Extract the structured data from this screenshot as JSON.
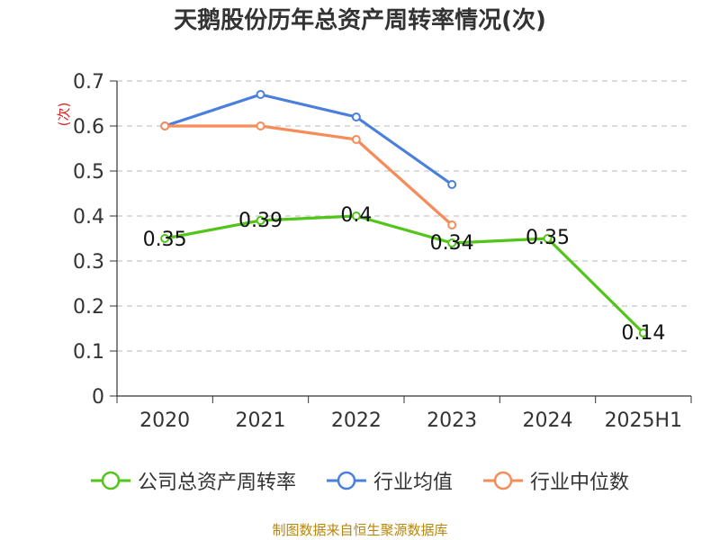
{
  "title": "天鹅股份历年总资产周转率情况(次)",
  "source": "制图数据来自恒生聚源数据库",
  "chart_data": {
    "type": "line",
    "ylabel": "(次)",
    "categories": [
      "2020",
      "2021",
      "2022",
      "2023",
      "2024",
      "2025H1"
    ],
    "ylim": [
      0,
      0.7
    ],
    "yticks": [
      "0",
      "0.1",
      "0.2",
      "0.3",
      "0.4",
      "0.5",
      "0.6",
      "0.7"
    ],
    "grid": true,
    "legend_position": "bottom",
    "series": [
      {
        "name": "公司总资产周转率",
        "color": "#52c41a",
        "values": [
          0.35,
          0.39,
          0.4,
          0.34,
          0.35,
          0.14
        ],
        "labels": [
          "0.35",
          "0.39",
          "0.4",
          "0.34",
          "0.35",
          "0.14"
        ]
      },
      {
        "name": "行业均值",
        "color": "#4a7fdc",
        "values": [
          0.6,
          0.67,
          0.62,
          0.47,
          null,
          null
        ]
      },
      {
        "name": "行业中位数",
        "color": "#f58c5a",
        "values": [
          0.6,
          0.6,
          0.57,
          0.38,
          null,
          null
        ]
      }
    ]
  }
}
